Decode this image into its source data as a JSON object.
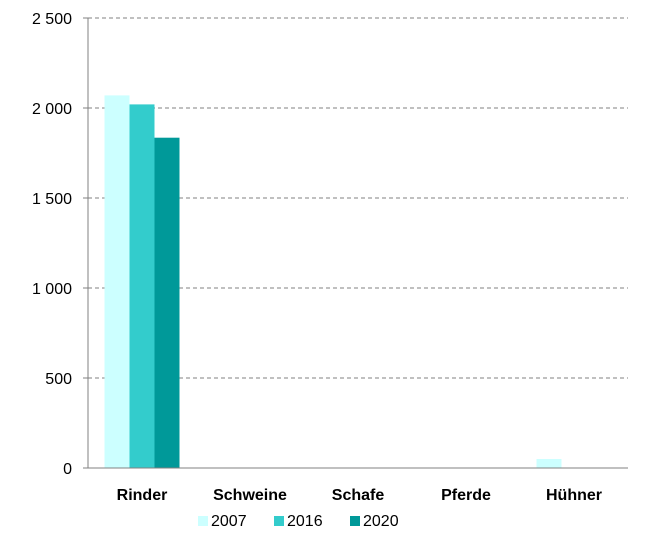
{
  "chart_data": {
    "type": "bar",
    "categories": [
      "Rinder",
      "Schweine",
      "Schafe",
      "Pferde",
      "Hühner"
    ],
    "series": [
      {
        "name": "2007",
        "color": "#ccffff",
        "values": [
          2070,
          0,
          0,
          0,
          50
        ]
      },
      {
        "name": "2016",
        "color": "#33cccc",
        "values": [
          2020,
          0,
          0,
          0,
          0
        ]
      },
      {
        "name": "2020",
        "color": "#009999",
        "values": [
          1835,
          0,
          0,
          0,
          0
        ]
      }
    ],
    "y_ticks": [
      "0",
      "500",
      "1 000",
      "1 500",
      "2 000",
      "2 500"
    ],
    "y_tick_values": [
      0,
      500,
      1000,
      1500,
      2000,
      2500
    ],
    "ylim": [
      0,
      2500
    ],
    "grid": true,
    "grid_style": "dashed",
    "legend_position": "bottom",
    "title": "",
    "xlabel": "",
    "ylabel": ""
  }
}
